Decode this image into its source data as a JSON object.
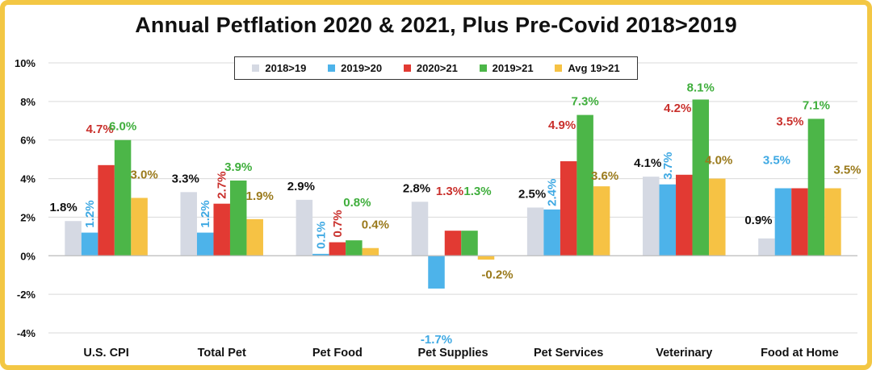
{
  "chart_data": {
    "type": "bar",
    "title": "Annual Petflation 2020 & 2021, Plus Pre-Covid 2018>2019",
    "xlabel": "",
    "ylabel": "",
    "ylim": [
      -4,
      10
    ],
    "yticks": [
      -4,
      -2,
      0,
      2,
      4,
      6,
      8,
      10
    ],
    "ytick_labels": [
      "-4%",
      "-2%",
      "0%",
      "2%",
      "4%",
      "6%",
      "8%",
      "10%"
    ],
    "grid": true,
    "legend_position": "top-center",
    "categories": [
      "U.S. CPI",
      "Total Pet",
      "Pet Food",
      "Pet Supplies",
      "Pet Services",
      "Veterinary",
      "Food at Home"
    ],
    "series": [
      {
        "name": "2018>19",
        "color": "#d5d9e3",
        "label_color": "#111111",
        "values": [
          1.8,
          3.3,
          2.9,
          2.8,
          2.5,
          4.1,
          0.9
        ],
        "labels": [
          "1.8%",
          "3.3%",
          "2.9%",
          "2.8%",
          "2.5%",
          "4.1%",
          "0.9%"
        ]
      },
      {
        "name": "2019>20",
        "color": "#4db3ea",
        "label_color": "#3fa9e3",
        "values": [
          1.2,
          1.2,
          0.1,
          -1.7,
          2.4,
          3.7,
          3.5
        ],
        "labels": [
          "1.2%",
          "1.2%",
          "0.1%",
          "-1.7%",
          "2.4%",
          "3.7%",
          "3.5%"
        ]
      },
      {
        "name": "2020>21",
        "color": "#e23a33",
        "label_color": "#c9302c",
        "values": [
          4.7,
          2.7,
          0.7,
          1.3,
          4.9,
          4.2,
          3.5
        ],
        "labels": [
          "4.7%",
          "2.7%",
          "0.7%",
          "1.3%",
          "4.9%",
          "4.2%",
          "3.5%"
        ]
      },
      {
        "name": "2019>21",
        "color": "#4cb648",
        "label_color": "#3fae3c",
        "values": [
          6.0,
          3.9,
          0.8,
          1.3,
          7.3,
          8.1,
          7.1
        ],
        "labels": [
          "6.0%",
          "3.9%",
          "0.8%",
          "1.3%",
          "7.3%",
          "8.1%",
          "7.1%"
        ]
      },
      {
        "name": "Avg 19>21",
        "color": "#f6c244",
        "label_color": "#9a7a1c",
        "values": [
          3.0,
          1.9,
          0.4,
          -0.2,
          3.6,
          4.0,
          3.5
        ],
        "labels": [
          "3.0%",
          "1.9%",
          "0.4%",
          "-0.2%",
          "3.6%",
          "4.0%",
          "3.5%"
        ]
      }
    ]
  }
}
